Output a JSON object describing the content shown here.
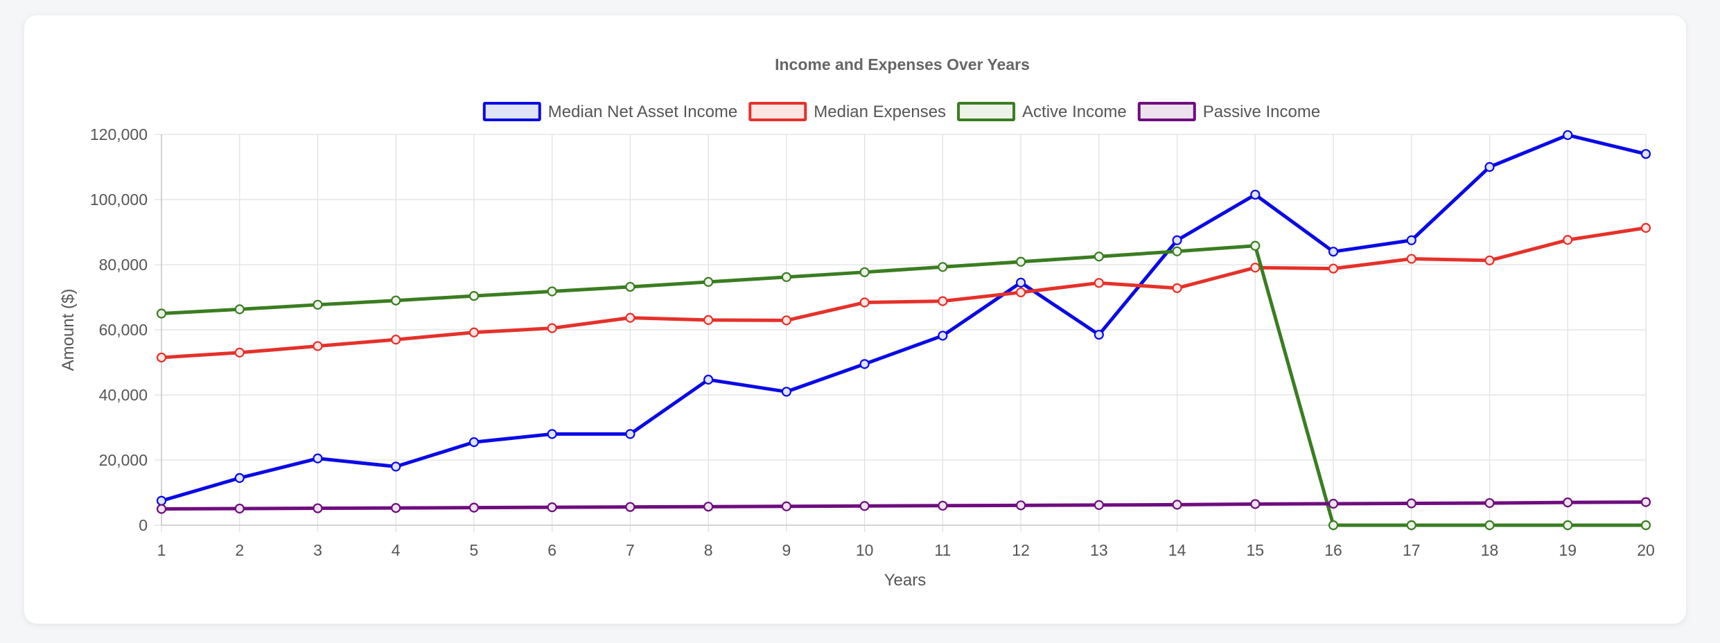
{
  "chart_data": {
    "type": "line",
    "title": "Income and Expenses Over Years",
    "xlabel": "Years",
    "ylabel": "Amount ($)",
    "ylim": [
      0,
      120000
    ],
    "yticks": [
      0,
      20000,
      40000,
      60000,
      80000,
      100000,
      120000
    ],
    "ytick_labels": [
      "0",
      "20,000",
      "40,000",
      "60,000",
      "80,000",
      "100,000",
      "120,000"
    ],
    "grid": true,
    "legend_position": "top-center",
    "x": [
      1,
      2,
      3,
      4,
      5,
      6,
      7,
      8,
      9,
      10,
      11,
      12,
      13,
      14,
      15,
      16,
      17,
      18,
      19,
      20
    ],
    "x_labels": [
      "1",
      "2",
      "3",
      "4",
      "5",
      "6",
      "7",
      "8",
      "9",
      "10",
      "11",
      "12",
      "13",
      "14",
      "15",
      "16",
      "17",
      "18",
      "19",
      "20"
    ],
    "series": [
      {
        "name": "Median Net Asset Income",
        "color": "#0a0ae6",
        "legend_fill": "#dfe4f7",
        "values": [
          7500,
          14500,
          20500,
          18000,
          25500,
          28000,
          28000,
          44700,
          41000,
          49500,
          58200,
          74500,
          58500,
          87500,
          101500,
          84000,
          87500,
          110000,
          119800,
          114000
        ]
      },
      {
        "name": "Median Expenses",
        "color": "#e5312a",
        "legend_fill": "#fbe6e4",
        "values": [
          51500,
          53000,
          55000,
          57000,
          59200,
          60500,
          63700,
          63000,
          62900,
          68400,
          68800,
          71500,
          74400,
          72800,
          79100,
          78800,
          81800,
          81300,
          87600,
          91300
        ]
      },
      {
        "name": "Active Income",
        "color": "#3a7d21",
        "legend_fill": "#eef3ea",
        "values": [
          65000,
          66300,
          67700,
          69000,
          70400,
          71800,
          73200,
          74700,
          76200,
          77700,
          79300,
          80900,
          82500,
          84100,
          85800,
          0,
          0,
          0,
          0,
          0
        ]
      },
      {
        "name": "Passive Income",
        "color": "#6e0d7e",
        "legend_fill": "#ede3ee",
        "values": [
          5000,
          5100,
          5200,
          5300,
          5400,
          5500,
          5600,
          5700,
          5800,
          5900,
          6000,
          6100,
          6200,
          6300,
          6500,
          6600,
          6700,
          6800,
          7000,
          7100
        ]
      }
    ]
  }
}
